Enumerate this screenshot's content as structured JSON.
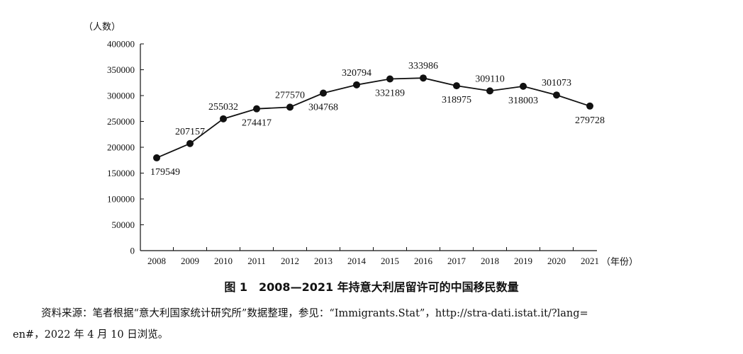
{
  "chart_data": {
    "type": "line",
    "y_unit_label": "（人数）",
    "x_unit_label": "（年份）",
    "ylim": [
      0,
      400000
    ],
    "yticks": [
      0,
      50000,
      100000,
      150000,
      200000,
      250000,
      300000,
      350000,
      400000
    ],
    "x": [
      "2008",
      "2009",
      "2010",
      "2011",
      "2012",
      "2013",
      "2014",
      "2015",
      "2016",
      "2017",
      "2018",
      "2019",
      "2020",
      "2021"
    ],
    "series": [
      {
        "values": [
          179549,
          207157,
          255032,
          274417,
          277570,
          304768,
          320794,
          332189,
          333986,
          318975,
          309110,
          318003,
          301073,
          279728
        ]
      }
    ],
    "data_label_positions": [
      "below",
      "above",
      "above",
      "below",
      "above",
      "below",
      "above",
      "below",
      "above",
      "below",
      "above",
      "below",
      "above",
      "below"
    ],
    "grid": false,
    "marker": "filled-circle",
    "line_color": "#111111"
  },
  "caption": "图 1　2008—2021 年持意大利居留许可的中国移民数量",
  "source_line1": "资料来源：笔者根据“意大利国家统计研究所”数据整理，参见：“Immigrants.Stat”，http://stra-dati.istat.it/?lang=",
  "source_line2": "en#，2022 年 4 月 10 日浏览。"
}
